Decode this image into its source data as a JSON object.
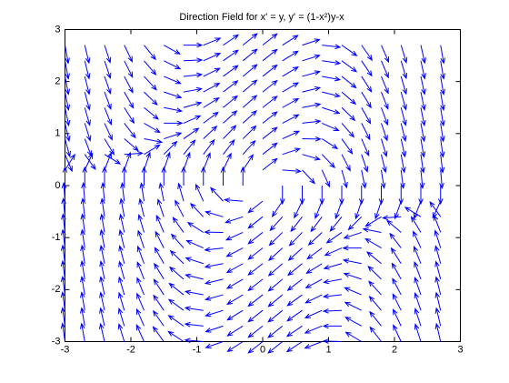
{
  "chart_data": {
    "type": "quiver",
    "title": "Direction Field for x' = y, y' = (1-x²)y-x",
    "color": "#0000ff",
    "xlim": [
      -3,
      3
    ],
    "ylim": [
      -3,
      3
    ],
    "xticks": [
      -3,
      -2,
      -1,
      0,
      1,
      2,
      3
    ],
    "yticks": [
      -3,
      -2,
      -1,
      0,
      1,
      2,
      3
    ],
    "x": [
      -3,
      -2.7,
      -2.4,
      -2.1,
      -1.8,
      -1.5,
      -1.2,
      -0.9,
      -0.6,
      -0.3,
      0,
      0.3,
      0.6,
      0.9,
      1.2,
      1.5,
      1.8,
      2.1,
      2.4,
      2.7
    ],
    "y": [
      -3,
      -2.7,
      -2.4,
      -2.1,
      -1.8,
      -1.5,
      -1.2,
      -0.9,
      -0.6,
      -0.3,
      0,
      0.3,
      0.6,
      0.9,
      1.2,
      1.5,
      1.8,
      2.1,
      2.4,
      2.7
    ],
    "u": [
      [
        -3,
        -2.7,
        -2.4,
        -2.1,
        -1.8,
        -1.5,
        -1.2,
        -0.9,
        -0.6,
        -0.3,
        0,
        0.3,
        0.6,
        0.9,
        1.2,
        1.5,
        1.8,
        2.1,
        2.4,
        2.7
      ],
      [
        -3,
        -2.7,
        -2.4,
        -2.1,
        -1.8,
        -1.5,
        -1.2,
        -0.9,
        -0.6,
        -0.3,
        0,
        0.3,
        0.6,
        0.9,
        1.2,
        1.5,
        1.8,
        2.1,
        2.4,
        2.7
      ],
      [
        -3,
        -2.7,
        -2.4,
        -2.1,
        -1.8,
        -1.5,
        -1.2,
        -0.9,
        -0.6,
        -0.3,
        0,
        0.3,
        0.6,
        0.9,
        1.2,
        1.5,
        1.8,
        2.1,
        2.4,
        2.7
      ],
      [
        -3,
        -2.7,
        -2.4,
        -2.1,
        -1.8,
        -1.5,
        -1.2,
        -0.9,
        -0.6,
        -0.3,
        0,
        0.3,
        0.6,
        0.9,
        1.2,
        1.5,
        1.8,
        2.1,
        2.4,
        2.7
      ],
      [
        -3,
        -2.7,
        -2.4,
        -2.1,
        -1.8,
        -1.5,
        -1.2,
        -0.9,
        -0.6,
        -0.3,
        0,
        0.3,
        0.6,
        0.9,
        1.2,
        1.5,
        1.8,
        2.1,
        2.4,
        2.7
      ],
      [
        -3,
        -2.7,
        -2.4,
        -2.1,
        -1.8,
        -1.5,
        -1.2,
        -0.9,
        -0.6,
        -0.3,
        0,
        0.3,
        0.6,
        0.9,
        1.2,
        1.5,
        1.8,
        2.1,
        2.4,
        2.7
      ],
      [
        -3,
        -2.7,
        -2.4,
        -2.1,
        -1.8,
        -1.5,
        -1.2,
        -0.9,
        -0.6,
        -0.3,
        0,
        0.3,
        0.6,
        0.9,
        1.2,
        1.5,
        1.8,
        2.1,
        2.4,
        2.7
      ],
      [
        -3,
        -2.7,
        -2.4,
        -2.1,
        -1.8,
        -1.5,
        -1.2,
        -0.9,
        -0.6,
        -0.3,
        0,
        0.3,
        0.6,
        0.9,
        1.2,
        1.5,
        1.8,
        2.1,
        2.4,
        2.7
      ],
      [
        -3,
        -2.7,
        -2.4,
        -2.1,
        -1.8,
        -1.5,
        -1.2,
        -0.9,
        -0.6,
        -0.3,
        0,
        0.3,
        0.6,
        0.9,
        1.2,
        1.5,
        1.8,
        2.1,
        2.4,
        2.7
      ],
      [
        -3,
        -2.7,
        -2.4,
        -2.1,
        -1.8,
        -1.5,
        -1.2,
        -0.9,
        -0.6,
        -0.3,
        0,
        0.3,
        0.6,
        0.9,
        1.2,
        1.5,
        1.8,
        2.1,
        2.4,
        2.7
      ],
      [
        -3,
        -2.7,
        -2.4,
        -2.1,
        -1.8,
        -1.5,
        -1.2,
        -0.9,
        -0.6,
        -0.3,
        0,
        0.3,
        0.6,
        0.9,
        1.2,
        1.5,
        1.8,
        2.1,
        2.4,
        2.7
      ],
      [
        -3,
        -2.7,
        -2.4,
        -2.1,
        -1.8,
        -1.5,
        -1.2,
        -0.9,
        -0.6,
        -0.3,
        0,
        0.3,
        0.6,
        0.9,
        1.2,
        1.5,
        1.8,
        2.1,
        2.4,
        2.7
      ],
      [
        -3,
        -2.7,
        -2.4,
        -2.1,
        -1.8,
        -1.5,
        -1.2,
        -0.9,
        -0.6,
        -0.3,
        0,
        0.3,
        0.6,
        0.9,
        1.2,
        1.5,
        1.8,
        2.1,
        2.4,
        2.7
      ],
      [
        -3,
        -2.7,
        -2.4,
        -2.1,
        -1.8,
        -1.5,
        -1.2,
        -0.9,
        -0.6,
        -0.3,
        0,
        0.3,
        0.6,
        0.9,
        1.2,
        1.5,
        1.8,
        2.1,
        2.4,
        2.7
      ],
      [
        -3,
        -2.7,
        -2.4,
        -2.1,
        -1.8,
        -1.5,
        -1.2,
        -0.9,
        -0.6,
        -0.3,
        0,
        0.3,
        0.6,
        0.9,
        1.2,
        1.5,
        1.8,
        2.1,
        2.4,
        2.7
      ],
      [
        -3,
        -2.7,
        -2.4,
        -2.1,
        -1.8,
        -1.5,
        -1.2,
        -0.9,
        -0.6,
        -0.3,
        0,
        0.3,
        0.6,
        0.9,
        1.2,
        1.5,
        1.8,
        2.1,
        2.4,
        2.7
      ],
      [
        -3,
        -2.7,
        -2.4,
        -2.1,
        -1.8,
        -1.5,
        -1.2,
        -0.9,
        -0.6,
        -0.3,
        0,
        0.3,
        0.6,
        0.9,
        1.2,
        1.5,
        1.8,
        2.1,
        2.4,
        2.7
      ],
      [
        -3,
        -2.7,
        -2.4,
        -2.1,
        -1.8,
        -1.5,
        -1.2,
        -0.9,
        -0.6,
        -0.3,
        0,
        0.3,
        0.6,
        0.9,
        1.2,
        1.5,
        1.8,
        2.1,
        2.4,
        2.7
      ],
      [
        -3,
        -2.7,
        -2.4,
        -2.1,
        -1.8,
        -1.5,
        -1.2,
        -0.9,
        -0.6,
        -0.3,
        0,
        0.3,
        0.6,
        0.9,
        1.2,
        1.5,
        1.8,
        2.1,
        2.4,
        2.7
      ],
      [
        -3,
        -2.7,
        -2.4,
        -2.1,
        -1.8,
        -1.5,
        -1.2,
        -0.9,
        -0.6,
        -0.3,
        0,
        0.3,
        0.6,
        0.9,
        1.2,
        1.5,
        1.8,
        2.1,
        2.4,
        2.7
      ]
    ],
    "v": [
      [
        27,
        24.6,
        22.2,
        19.8,
        17.4,
        15,
        12.6,
        10.2,
        7.8,
        5.4,
        3,
        0.6,
        -1.8,
        -4.2,
        -6.6,
        -9,
        -11.4,
        -13.8,
        -16.2,
        -18.6
      ],
      [
        21.57,
        19.68,
        17.8,
        15.91,
        14.02,
        12.14,
        10.25,
        8.36,
        6.47,
        4.59,
        2.7,
        0.81,
        -1.07,
        -2.96,
        -4.85,
        -6.74,
        -8.62,
        -10.51,
        -12.4,
        -14.28
      ],
      [
        16.68,
        15.25,
        13.82,
        12.4,
        10.97,
        9.54,
        8.11,
        6.68,
        5.26,
        3.83,
        2.4,
        0.97,
        -0.46,
        -1.88,
        -3.31,
        -4.74,
        -6.17,
        -7.6,
        -9.02,
        -10.45
      ],
      [
        12.33,
        11.31,
        10.28,
        9.26,
        8.24,
        7.22,
        6.19,
        5.17,
        4.15,
        3.12,
        2.1,
        1.08,
        0.05,
        -0.97,
        -1.99,
        -3.02,
        -4.04,
        -5.06,
        -6.08,
        -7.11
      ],
      [
        8.52,
        7.85,
        7.18,
        6.5,
        5.83,
        5.16,
        4.49,
        3.82,
        3.14,
        2.47,
        1.8,
        1.13,
        0.46,
        -0.22,
        -0.89,
        -1.56,
        -2.23,
        -2.9,
        -3.58,
        -4.25
      ],
      [
        5.25,
        4.88,
        4.5,
        4.13,
        3.75,
        3.38,
        3,
        2.63,
        2.25,
        1.88,
        1.5,
        1.13,
        0.75,
        0.38,
        0,
        -0.38,
        -0.75,
        -1.13,
        -1.5,
        -1.88
      ],
      [
        2.52,
        2.39,
        2.26,
        2.12,
        1.99,
        1.86,
        1.73,
        1.6,
        1.46,
        1.33,
        1.2,
        1.07,
        0.94,
        0.8,
        0.67,
        0.54,
        0.41,
        0.28,
        0.14,
        0.01
      ],
      [
        0.33,
        0.39,
        0.44,
        0.5,
        0.56,
        0.62,
        0.67,
        0.73,
        0.79,
        0.84,
        0.9,
        0.96,
        1.01,
        1.07,
        1.13,
        1.19,
        1.24,
        1.3,
        1.36,
        1.41
      ],
      [
        -1.32,
        -1.13,
        -0.94,
        -0.74,
        -0.55,
        -0.36,
        -0.17,
        0.02,
        0.22,
        0.41,
        0.6,
        0.79,
        0.98,
        1.18,
        1.37,
        1.56,
        1.75,
        1.94,
        2.14,
        2.33
      ],
      [
        -2.43,
        -2.16,
        -1.88,
        -1.61,
        -1.34,
        -1.07,
        -0.79,
        -0.52,
        -0.25,
        0.03,
        0.3,
        0.57,
        0.85,
        1.12,
        1.39,
        1.67,
        1.94,
        2.21,
        2.48,
        2.76
      ],
      [
        -3,
        -2.7,
        -2.4,
        -2.1,
        -1.8,
        -1.5,
        -1.2,
        -0.9,
        -0.6,
        -0.3,
        0,
        0.3,
        0.6,
        0.9,
        1.2,
        1.5,
        1.8,
        2.1,
        2.4,
        2.7
      ],
      [
        -3.03,
        -2.76,
        -2.48,
        -2.21,
        -1.94,
        -1.67,
        -1.39,
        -1.12,
        -0.85,
        -0.57,
        -0.3,
        -0.03,
        0.25,
        0.52,
        0.79,
        1.07,
        1.34,
        1.61,
        1.88,
        2.16
      ],
      [
        -2.52,
        -2.33,
        -2.14,
        -1.94,
        -1.75,
        -1.56,
        -1.37,
        -1.18,
        -0.98,
        -0.79,
        -0.6,
        -0.41,
        -0.22,
        -0.02,
        0.17,
        0.36,
        0.55,
        0.74,
        0.94,
        1.13
      ],
      [
        -1.47,
        -1.41,
        -1.36,
        -1.3,
        -1.24,
        -1.19,
        -1.13,
        -1.07,
        -1.01,
        -0.96,
        -0.9,
        -0.84,
        -0.79,
        -0.73,
        -0.67,
        -0.62,
        -0.56,
        -0.5,
        -0.44,
        -0.39
      ],
      [
        0.12,
        -0.01,
        -0.14,
        -0.28,
        -0.41,
        -0.54,
        -0.67,
        -0.8,
        -0.94,
        -1.07,
        -1.2,
        -1.33,
        -1.46,
        -1.6,
        -1.73,
        -1.86,
        -1.99,
        -2.12,
        -2.26,
        -2.39
      ],
      [
        2.25,
        1.88,
        1.5,
        1.13,
        0.75,
        0.38,
        0,
        -0.38,
        -0.75,
        -1.13,
        -1.5,
        -1.88,
        -2.25,
        -2.63,
        -3,
        -3.38,
        -3.75,
        -4.13,
        -4.5,
        -4.88
      ],
      [
        4.92,
        4.25,
        3.58,
        2.9,
        2.23,
        1.56,
        0.89,
        0.22,
        -0.46,
        -1.13,
        -1.8,
        -2.47,
        -3.14,
        -3.82,
        -4.49,
        -5.16,
        -5.83,
        -6.5,
        -7.18,
        -7.85
      ],
      [
        8.13,
        7.11,
        6.08,
        5.06,
        4.04,
        3.02,
        1.99,
        0.97,
        -0.05,
        -1.08,
        -2.1,
        -3.12,
        -4.15,
        -5.17,
        -6.19,
        -7.22,
        -8.24,
        -9.26,
        -10.28,
        -11.31
      ],
      [
        11.88,
        10.45,
        9.02,
        7.6,
        6.17,
        4.74,
        3.31,
        1.88,
        0.46,
        -0.97,
        -2.4,
        -3.83,
        -5.26,
        -6.68,
        -8.11,
        -9.54,
        -10.97,
        -12.4,
        -13.82,
        -15.25
      ],
      [
        16.17,
        14.28,
        12.4,
        10.51,
        8.62,
        6.74,
        4.85,
        2.96,
        1.07,
        -0.81,
        -2.7,
        -4.59,
        -6.47,
        -8.36,
        -10.25,
        -12.14,
        -14.02,
        -15.91,
        -17.8,
        -19.68
      ]
    ]
  }
}
